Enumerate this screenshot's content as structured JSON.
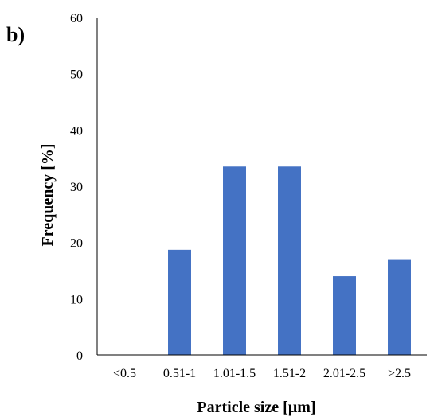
{
  "panel_label": "b)",
  "chart_data": {
    "type": "bar",
    "categories": [
      "<0.5",
      "0.51-1",
      "1.01-1.5",
      "1.51-2",
      "2.01-2.5",
      ">2.5"
    ],
    "values": [
      0,
      18.7,
      33.5,
      33.5,
      14.0,
      16.9
    ],
    "xlabel": "Particle size [µm]",
    "ylabel": "Frequency [%]",
    "ylim": [
      0,
      60
    ],
    "yticks": [
      "0",
      "10",
      "20",
      "30",
      "40",
      "50",
      "60"
    ],
    "bar_color": "#4472C4",
    "grid": false,
    "legend": "none"
  }
}
